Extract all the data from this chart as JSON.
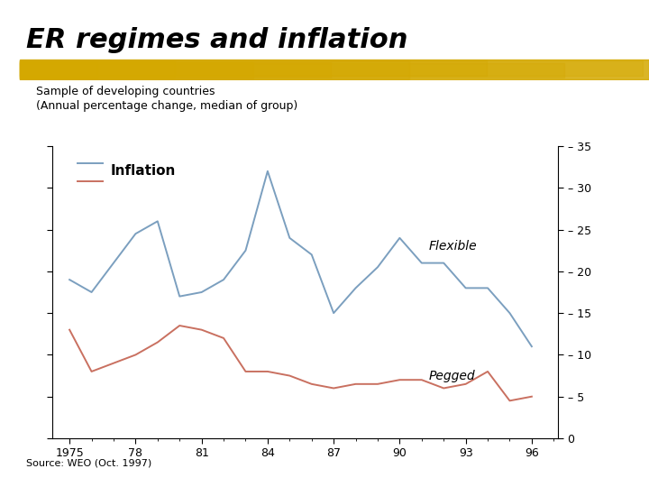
{
  "title": "ER regimes and inflation",
  "subtitle_line1": "Sample of developing countries",
  "subtitle_line2": "(Annual percentage change, median of group)",
  "source": "Source: WEO (Oct. 1997)",
  "legend_label": "Inflation",
  "years": [
    1975,
    1976,
    1977,
    1978,
    1979,
    1980,
    1981,
    1982,
    1983,
    1984,
    1985,
    1986,
    1987,
    1988,
    1989,
    1990,
    1991,
    1992,
    1993,
    1994,
    1995,
    1996
  ],
  "flexible": [
    19,
    17.5,
    21,
    24.5,
    26,
    17,
    17.5,
    19,
    22.5,
    32,
    24,
    22,
    15,
    18,
    20.5,
    24,
    21,
    21,
    18,
    18,
    15,
    11
  ],
  "pegged": [
    13,
    8,
    9,
    10,
    11.5,
    13.5,
    13,
    12,
    8,
    8,
    7.5,
    6.5,
    6,
    6.5,
    6.5,
    7,
    7,
    6,
    6.5,
    8,
    4.5,
    5
  ],
  "flexible_color": "#7B9FBF",
  "pegged_color": "#C97060",
  "background_color": "#ffffff",
  "plot_bg_color": "#ffffff",
  "highlight_color": "#D4A800",
  "ylim": [
    0,
    35
  ],
  "yticks": [
    0,
    5,
    10,
    15,
    20,
    25,
    30,
    35
  ],
  "xticks": [
    1975,
    1978,
    1981,
    1984,
    1987,
    1990,
    1993,
    1996
  ],
  "xticklabels": [
    "1975",
    "78",
    "81",
    "84",
    "87",
    "90",
    "93",
    "96"
  ],
  "title_fontsize": 22,
  "subtitle_fontsize": 9,
  "axis_fontsize": 9,
  "label_fontsize": 10,
  "source_fontsize": 8
}
